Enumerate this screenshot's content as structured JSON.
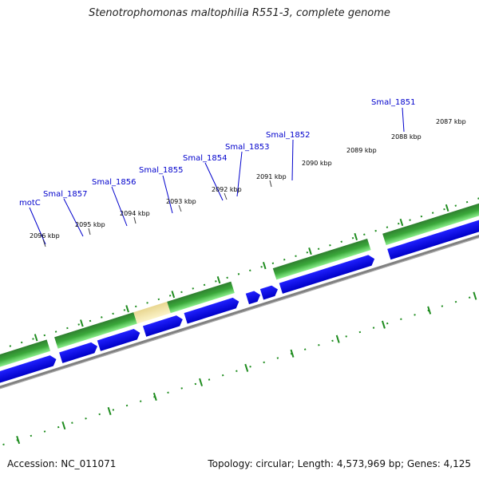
{
  "title": "Stenotrophomonas maltophilia R551-3, complete genome",
  "footer": {
    "accession": "Accession: NC_011071",
    "stats": "Topology: circular; Length: 4,573,969 bp; Genes: 4,125"
  },
  "ticks": [
    "2096 kbp",
    "2095 kbp",
    "2094 kbp",
    "2093 kbp",
    "2092 kbp",
    "2091 kbp",
    "2090 kbp",
    "2089 kbp",
    "2088 kbp",
    "2087 kbp"
  ],
  "genes": [
    "motC",
    "Smal_1857",
    "Smal_1856",
    "Smal_1855",
    "Smal_1854",
    "Smal_1853",
    "Smal_1852",
    "Smal_1851"
  ],
  "colors": {
    "cds_blue": "#0a0af0",
    "gene_green": "#3cb43c",
    "gene_highlight": "#f2e6a0",
    "backbone": "#808080",
    "tick_green": "#1e8c1e",
    "label_blue": "#0000cc"
  }
}
